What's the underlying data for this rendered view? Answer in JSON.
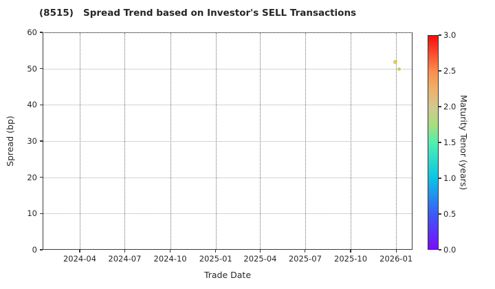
{
  "chart_data": {
    "type": "scatter",
    "title": "(8515)   Spread Trend based on Investor's SELL Transactions",
    "xlabel": "Trade Date",
    "ylabel": "Spread (bp)",
    "x_tick_labels": [
      "2024-04",
      "2024-07",
      "2024-10",
      "2025-01",
      "2025-04",
      "2025-07",
      "2025-10",
      "2026-01"
    ],
    "ylim": [
      0,
      60
    ],
    "y_ticks": [
      0,
      10,
      20,
      30,
      40,
      50,
      60
    ],
    "grid": true,
    "legend": false,
    "points": [
      {
        "trade_date": "2025-12-29",
        "spread_bp": 52,
        "maturity_tenor_years": 2.0,
        "color": "#d6ca68"
      },
      {
        "trade_date": "2026-01-06",
        "spread_bp": 50,
        "maturity_tenor_years": 2.0,
        "color": "#d2c65c"
      }
    ],
    "colorbar": {
      "label": "Maturity Tenor (years)",
      "min": 0.0,
      "max": 3.0,
      "tick_values": [
        0.0,
        0.5,
        1.0,
        1.5,
        2.0,
        2.5,
        3.0
      ],
      "tick_labels": [
        "0.0",
        "0.5",
        "1.0",
        "1.5",
        "2.0",
        "2.5",
        "3.0"
      ],
      "colormap": "rainbow",
      "gradient_stops": [
        {
          "offset": 0.0,
          "color": "#7b0bfb"
        },
        {
          "offset": 0.1667,
          "color": "#3c5bf7"
        },
        {
          "offset": 0.3333,
          "color": "#0bc4e7"
        },
        {
          "offset": 0.5,
          "color": "#4ff0b2"
        },
        {
          "offset": 0.5833,
          "color": "#a8de7d"
        },
        {
          "offset": 0.6667,
          "color": "#d2c88f"
        },
        {
          "offset": 0.75,
          "color": "#eeb169"
        },
        {
          "offset": 0.8333,
          "color": "#fb8e4b"
        },
        {
          "offset": 1.0,
          "color": "#f80c0c"
        }
      ]
    }
  }
}
